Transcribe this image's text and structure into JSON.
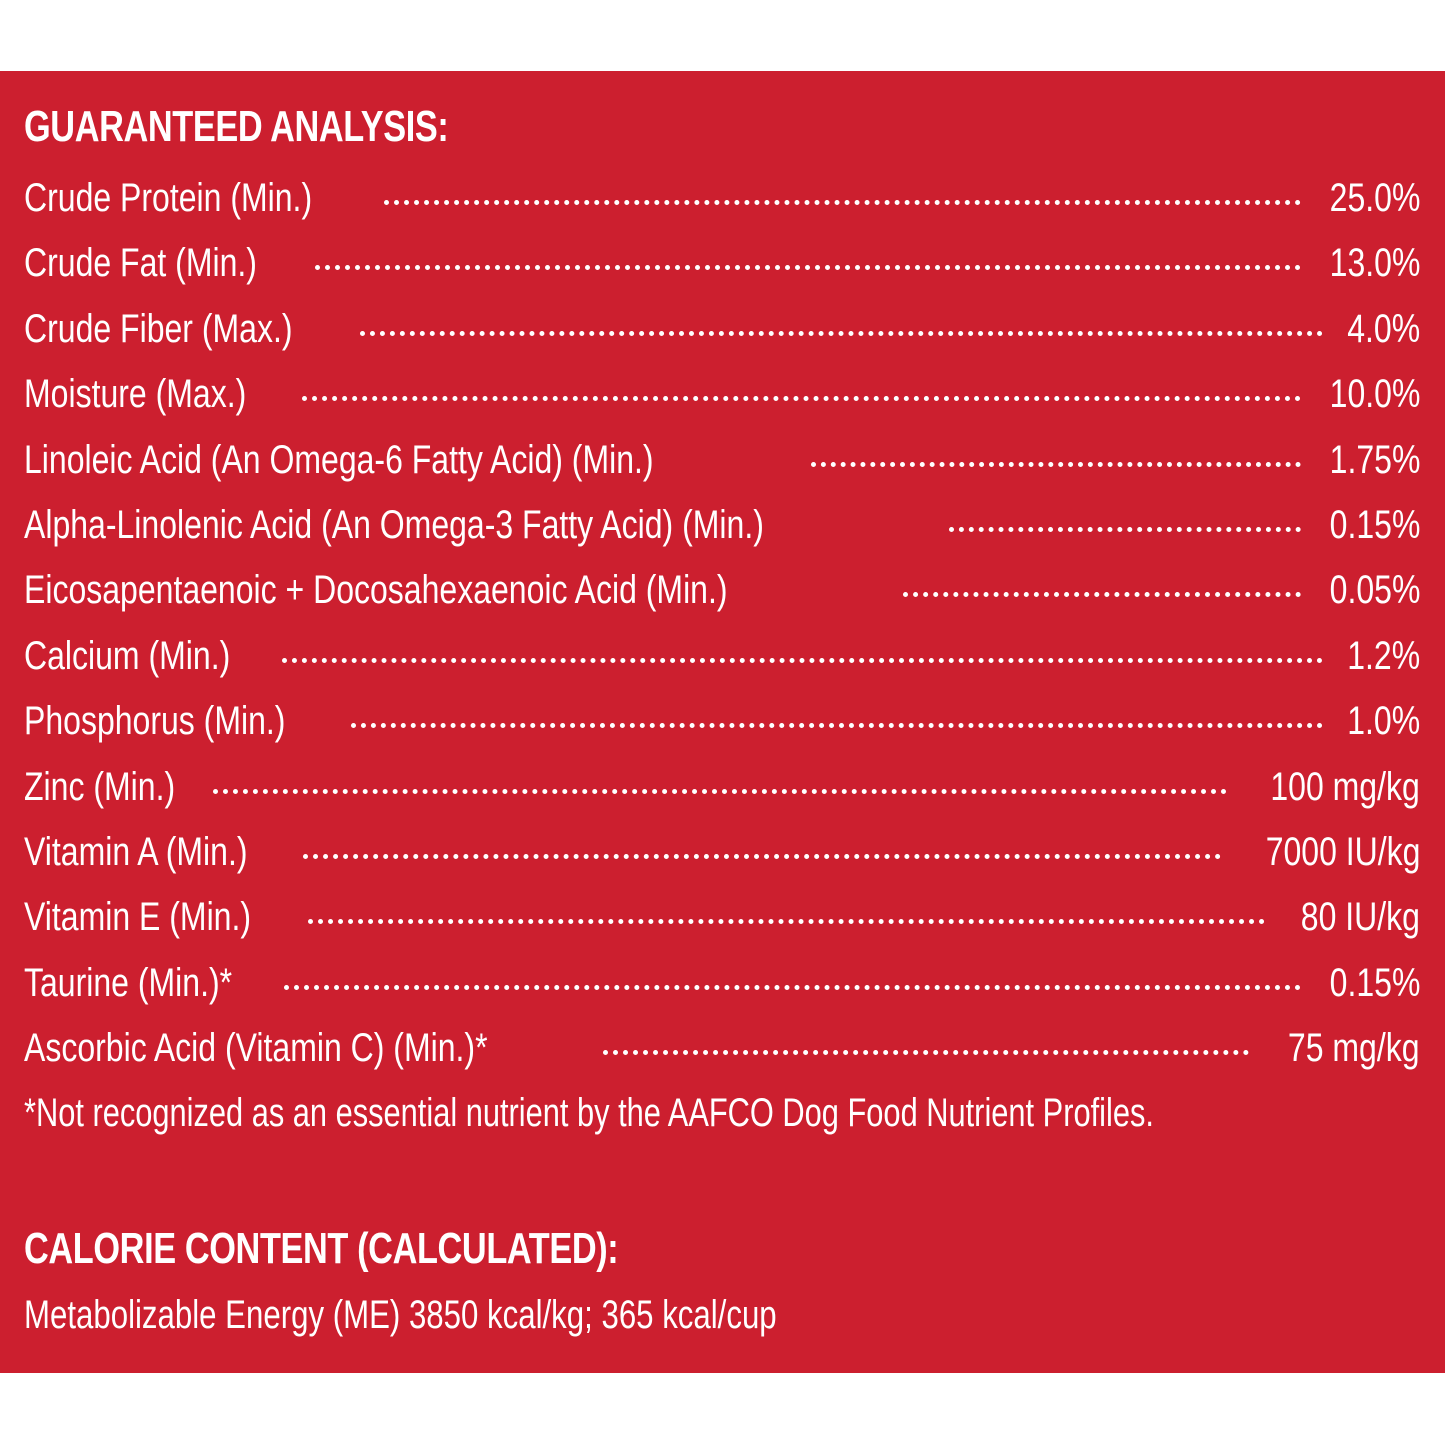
{
  "analysis": {
    "title": "GUARANTEED ANALYSIS:",
    "rows": [
      {
        "label": "Crude Protein (Min.)",
        "value": "25.0%"
      },
      {
        "label": "Crude Fat (Min.)",
        "value": "13.0%"
      },
      {
        "label": "Crude Fiber (Max.)",
        "value": "4.0%"
      },
      {
        "label": "Moisture (Max.)",
        "value": "10.0%"
      },
      {
        "label": "Linoleic Acid (An Omega-6 Fatty Acid) (Min.)",
        "value": "1.75%"
      },
      {
        "label": "Alpha-Linolenic Acid (An Omega-3 Fatty Acid) (Min.)",
        "value": "0.15%"
      },
      {
        "label": "Eicosapentaenoic + Docosahexaenoic Acid (Min.)",
        "value": "0.05%"
      },
      {
        "label": "Calcium (Min.)",
        "value": "1.2%"
      },
      {
        "label": "Phosphorus (Min.)",
        "value": "1.0%"
      },
      {
        "label": "Zinc (Min.)",
        "value": "100 mg/kg"
      },
      {
        "label": "Vitamin A (Min.)",
        "value": "7000 IU/kg"
      },
      {
        "label": "Vitamin E (Min.)",
        "value": "80 IU/kg"
      },
      {
        "label": "Taurine (Min.)*",
        "value": "0.15%"
      },
      {
        "label": "Ascorbic Acid (Vitamin C) (Min.)*",
        "value": "75 mg/kg"
      }
    ],
    "footnote": "*Not recognized as an essential nutrient by the AAFCO Dog Food Nutrient Profiles."
  },
  "calorie": {
    "title": "CALORIE CONTENT (CALCULATED):",
    "text": "Metabolizable Energy (ME) 3850 kcal/kg;  365 kcal/cup"
  },
  "colors": {
    "panel_background": "#cc1f2f",
    "text": "#ffffff",
    "page_background": "#ffffff"
  }
}
